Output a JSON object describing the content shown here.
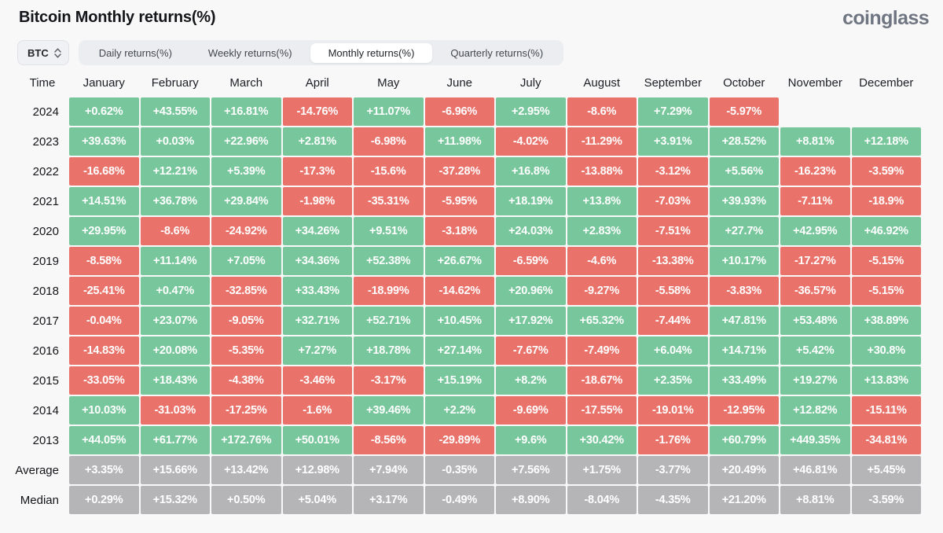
{
  "header": {
    "title": "Bitcoin Monthly returns(%)",
    "logo": "coinglass"
  },
  "toolbar": {
    "coin": "BTC",
    "tabs": [
      {
        "label": "Daily returns(%)",
        "active": false
      },
      {
        "label": "Weekly returns(%)",
        "active": false
      },
      {
        "label": "Monthly returns(%)",
        "active": true
      },
      {
        "label": "Quarterly returns(%)",
        "active": false
      }
    ]
  },
  "colors": {
    "positive": "#78c79c",
    "negative": "#e9736b",
    "summary": "#b5b5b8"
  },
  "table": {
    "time_header": "Time",
    "months": [
      "January",
      "February",
      "March",
      "April",
      "May",
      "June",
      "July",
      "August",
      "September",
      "October",
      "November",
      "December"
    ],
    "rows": [
      {
        "label": "2024",
        "summary": false,
        "values": [
          "+0.62%",
          "+43.55%",
          "+16.81%",
          "-14.76%",
          "+11.07%",
          "-6.96%",
          "+2.95%",
          "-8.6%",
          "+7.29%",
          "-5.97%",
          null,
          null
        ]
      },
      {
        "label": "2023",
        "summary": false,
        "values": [
          "+39.63%",
          "+0.03%",
          "+22.96%",
          "+2.81%",
          "-6.98%",
          "+11.98%",
          "-4.02%",
          "-11.29%",
          "+3.91%",
          "+28.52%",
          "+8.81%",
          "+12.18%"
        ]
      },
      {
        "label": "2022",
        "summary": false,
        "values": [
          "-16.68%",
          "+12.21%",
          "+5.39%",
          "-17.3%",
          "-15.6%",
          "-37.28%",
          "+16.8%",
          "-13.88%",
          "-3.12%",
          "+5.56%",
          "-16.23%",
          "-3.59%"
        ]
      },
      {
        "label": "2021",
        "summary": false,
        "values": [
          "+14.51%",
          "+36.78%",
          "+29.84%",
          "-1.98%",
          "-35.31%",
          "-5.95%",
          "+18.19%",
          "+13.8%",
          "-7.03%",
          "+39.93%",
          "-7.11%",
          "-18.9%"
        ]
      },
      {
        "label": "2020",
        "summary": false,
        "values": [
          "+29.95%",
          "-8.6%",
          "-24.92%",
          "+34.26%",
          "+9.51%",
          "-3.18%",
          "+24.03%",
          "+2.83%",
          "-7.51%",
          "+27.7%",
          "+42.95%",
          "+46.92%"
        ]
      },
      {
        "label": "2019",
        "summary": false,
        "values": [
          "-8.58%",
          "+11.14%",
          "+7.05%",
          "+34.36%",
          "+52.38%",
          "+26.67%",
          "-6.59%",
          "-4.6%",
          "-13.38%",
          "+10.17%",
          "-17.27%",
          "-5.15%"
        ]
      },
      {
        "label": "2018",
        "summary": false,
        "values": [
          "-25.41%",
          "+0.47%",
          "-32.85%",
          "+33.43%",
          "-18.99%",
          "-14.62%",
          "+20.96%",
          "-9.27%",
          "-5.58%",
          "-3.83%",
          "-36.57%",
          "-5.15%"
        ]
      },
      {
        "label": "2017",
        "summary": false,
        "values": [
          "-0.04%",
          "+23.07%",
          "-9.05%",
          "+32.71%",
          "+52.71%",
          "+10.45%",
          "+17.92%",
          "+65.32%",
          "-7.44%",
          "+47.81%",
          "+53.48%",
          "+38.89%"
        ]
      },
      {
        "label": "2016",
        "summary": false,
        "values": [
          "-14.83%",
          "+20.08%",
          "-5.35%",
          "+7.27%",
          "+18.78%",
          "+27.14%",
          "-7.67%",
          "-7.49%",
          "+6.04%",
          "+14.71%",
          "+5.42%",
          "+30.8%"
        ]
      },
      {
        "label": "2015",
        "summary": false,
        "values": [
          "-33.05%",
          "+18.43%",
          "-4.38%",
          "-3.46%",
          "-3.17%",
          "+15.19%",
          "+8.2%",
          "-18.67%",
          "+2.35%",
          "+33.49%",
          "+19.27%",
          "+13.83%"
        ]
      },
      {
        "label": "2014",
        "summary": false,
        "values": [
          "+10.03%",
          "-31.03%",
          "-17.25%",
          "-1.6%",
          "+39.46%",
          "+2.2%",
          "-9.69%",
          "-17.55%",
          "-19.01%",
          "-12.95%",
          "+12.82%",
          "-15.11%"
        ]
      },
      {
        "label": "2013",
        "summary": false,
        "values": [
          "+44.05%",
          "+61.77%",
          "+172.76%",
          "+50.01%",
          "-8.56%",
          "-29.89%",
          "+9.6%",
          "+30.42%",
          "-1.76%",
          "+60.79%",
          "+449.35%",
          "-34.81%"
        ]
      },
      {
        "label": "Average",
        "summary": true,
        "values": [
          "+3.35%",
          "+15.66%",
          "+13.42%",
          "+12.98%",
          "+7.94%",
          "-0.35%",
          "+7.56%",
          "+1.75%",
          "-3.77%",
          "+20.49%",
          "+46.81%",
          "+5.45%"
        ]
      },
      {
        "label": "Median",
        "summary": true,
        "values": [
          "+0.29%",
          "+15.32%",
          "+0.50%",
          "+5.04%",
          "+3.17%",
          "-0.49%",
          "+8.90%",
          "-8.04%",
          "-4.35%",
          "+21.20%",
          "+8.81%",
          "-3.59%"
        ]
      }
    ]
  }
}
